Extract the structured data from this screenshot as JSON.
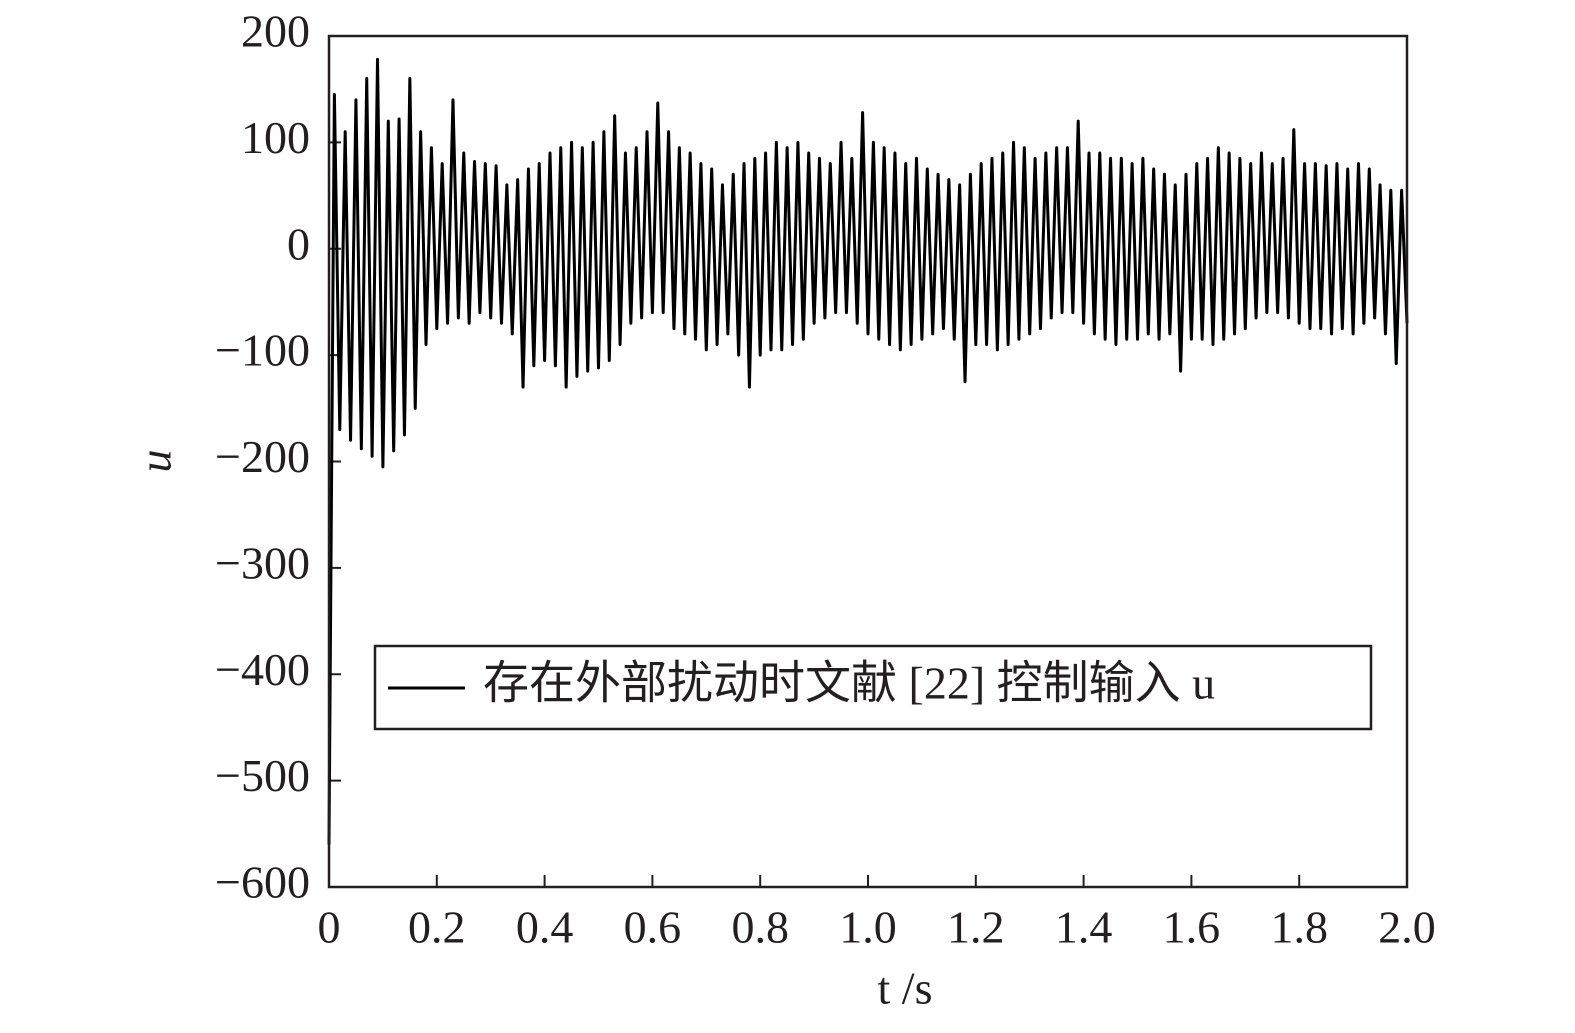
{
  "chart_data": {
    "type": "line",
    "x_label": "t /s",
    "y_label": "u",
    "x": [
      0,
      0.005,
      0.01,
      0.02,
      0.03,
      0.04,
      0.05,
      0.06,
      0.07,
      0.08,
      0.09,
      0.1,
      0.11,
      0.12,
      0.13,
      0.14,
      0.15,
      0.16,
      0.17,
      0.18,
      0.19,
      0.2,
      0.21,
      0.22,
      0.23,
      0.24,
      0.25,
      0.26,
      0.27,
      0.28,
      0.29,
      0.3,
      0.31,
      0.32,
      0.33,
      0.34,
      0.35,
      0.36,
      0.37,
      0.38,
      0.39,
      0.4,
      0.41,
      0.42,
      0.43,
      0.44,
      0.45,
      0.46,
      0.47,
      0.48,
      0.49,
      0.5,
      0.51,
      0.52,
      0.53,
      0.54,
      0.55,
      0.56,
      0.57,
      0.58,
      0.59,
      0.6,
      0.61,
      0.62,
      0.63,
      0.64,
      0.65,
      0.66,
      0.67,
      0.68,
      0.69,
      0.7,
      0.71,
      0.72,
      0.73,
      0.74,
      0.75,
      0.76,
      0.77,
      0.78,
      0.79,
      0.8,
      0.81,
      0.82,
      0.83,
      0.84,
      0.85,
      0.86,
      0.87,
      0.88,
      0.89,
      0.9,
      0.91,
      0.92,
      0.93,
      0.94,
      0.95,
      0.96,
      0.97,
      0.98,
      0.99,
      1.0,
      1.01,
      1.02,
      1.03,
      1.04,
      1.05,
      1.06,
      1.07,
      1.08,
      1.09,
      1.1,
      1.11,
      1.12,
      1.13,
      1.14,
      1.15,
      1.16,
      1.17,
      1.18,
      1.19,
      1.2,
      1.21,
      1.22,
      1.23,
      1.24,
      1.25,
      1.26,
      1.27,
      1.28,
      1.29,
      1.3,
      1.31,
      1.32,
      1.33,
      1.34,
      1.35,
      1.36,
      1.37,
      1.38,
      1.39,
      1.4,
      1.41,
      1.42,
      1.43,
      1.44,
      1.45,
      1.46,
      1.47,
      1.48,
      1.49,
      1.5,
      1.51,
      1.52,
      1.53,
      1.54,
      1.55,
      1.56,
      1.57,
      1.58,
      1.59,
      1.6,
      1.61,
      1.62,
      1.63,
      1.64,
      1.65,
      1.66,
      1.67,
      1.68,
      1.69,
      1.7,
      1.71,
      1.72,
      1.73,
      1.74,
      1.75,
      1.76,
      1.77,
      1.78,
      1.79,
      1.8,
      1.81,
      1.82,
      1.83,
      1.84,
      1.85,
      1.86,
      1.87,
      1.88,
      1.89,
      1.9,
      1.91,
      1.92,
      1.93,
      1.94,
      1.95,
      1.96,
      1.97,
      1.98,
      1.99,
      2.0
    ],
    "series": [
      {
        "name": "存在外部扰动时文献 [22] 控制输入 u",
        "color": "#000000",
        "values": [
          -560,
          -200,
          145,
          -170,
          110,
          -180,
          140,
          -188,
          160,
          -195,
          178,
          -205,
          120,
          -190,
          122,
          -175,
          160,
          -150,
          110,
          -90,
          95,
          -75,
          80,
          -70,
          140,
          -65,
          90,
          -70,
          82,
          -60,
          80,
          -65,
          78,
          -70,
          60,
          -80,
          65,
          -130,
          75,
          -110,
          80,
          -105,
          90,
          -110,
          95,
          -130,
          100,
          -120,
          95,
          -115,
          100,
          -112,
          110,
          -105,
          125,
          -90,
          90,
          -70,
          95,
          -65,
          110,
          -60,
          137,
          -60,
          110,
          -75,
          95,
          -80,
          90,
          -85,
          80,
          -95,
          75,
          -90,
          60,
          -80,
          70,
          -100,
          80,
          -130,
          85,
          -100,
          90,
          -95,
          100,
          -95,
          95,
          -90,
          100,
          -85,
          90,
          -70,
          85,
          -65,
          80,
          -60,
          100,
          -60,
          85,
          -70,
          128,
          -80,
          100,
          -85,
          95,
          -90,
          90,
          -95,
          80,
          -90,
          85,
          -85,
          75,
          -80,
          70,
          -75,
          65,
          -85,
          60,
          -125,
          70,
          -90,
          80,
          -90,
          85,
          -95,
          90,
          -90,
          100,
          -85,
          95,
          -80,
          85,
          -75,
          90,
          -65,
          95,
          -60,
          95,
          -60,
          120,
          -70,
          90,
          -80,
          90,
          -85,
          85,
          -90,
          85,
          -85,
          80,
          -85,
          85,
          -80,
          75,
          -85,
          70,
          -80,
          60,
          -115,
          70,
          -85,
          80,
          -85,
          85,
          -90,
          95,
          -85,
          90,
          -80,
          85,
          -75,
          80,
          -65,
          90,
          -60,
          80,
          -60,
          85,
          -65,
          112,
          -70,
          80,
          -75,
          80,
          -75,
          78,
          -80,
          80,
          -75,
          75,
          -80,
          80,
          -70,
          75,
          -65,
          60,
          -80,
          55,
          -108,
          55,
          -70
        ]
      }
    ],
    "xlim": [
      0,
      2
    ],
    "xticks": [
      0,
      0.2,
      0.4,
      0.6,
      0.8,
      {
        "value": 1,
        "label": "1.0"
      },
      1.2,
      1.4,
      1.6,
      1.8,
      {
        "value": 2,
        "label": "2.0"
      }
    ],
    "ylim": [
      -600,
      200
    ],
    "yticks": [
      {
        "value": -600,
        "label": "−600"
      },
      {
        "value": -500,
        "label": "−500"
      },
      {
        "value": -400,
        "label": "−400"
      },
      {
        "value": -300,
        "label": "−300"
      },
      {
        "value": -200,
        "label": "−200"
      },
      {
        "value": -100,
        "label": "−100"
      },
      0,
      100,
      200
    ],
    "grid": false,
    "legend": "lower center"
  }
}
